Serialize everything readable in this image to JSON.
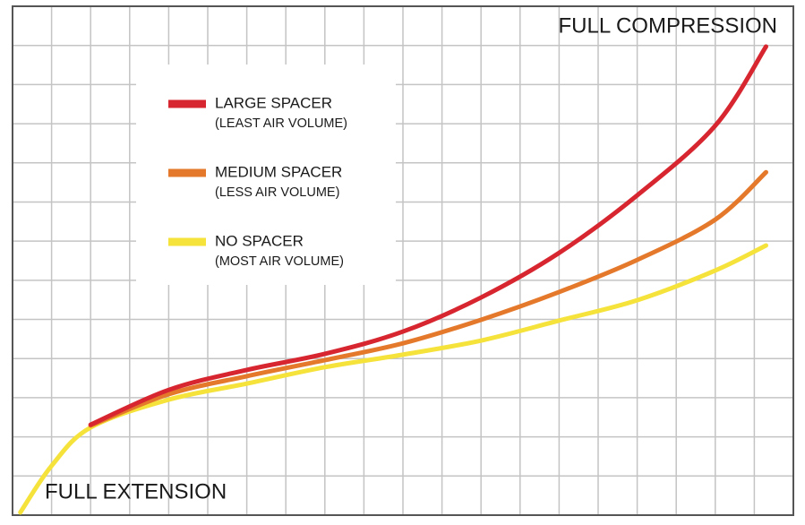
{
  "chart_data": {
    "type": "line",
    "annotations": [
      "FULL COMPRESSION",
      "FULL EXTENSION"
    ],
    "x": [
      0.2,
      1,
      2,
      4,
      6,
      8,
      10,
      12,
      14,
      16,
      18,
      19.3
    ],
    "xlim": [
      0,
      20
    ],
    "ylim": [
      0,
      13
    ],
    "xticks": [
      0,
      1,
      2,
      3,
      4,
      5,
      6,
      7,
      8,
      9,
      10,
      11,
      12,
      13,
      14,
      15,
      16,
      17,
      18,
      19,
      20
    ],
    "yticks": [
      0,
      1,
      2,
      3,
      4,
      5,
      6,
      7,
      8,
      9,
      10,
      11,
      12,
      13
    ],
    "grid": true,
    "series": [
      {
        "name": "LARGE SPACER",
        "description": "(LEAST AIR VOLUME)",
        "color": "#d7262f",
        "values": [
          null,
          null,
          2.31,
          3.2,
          3.71,
          4.12,
          4.69,
          5.56,
          6.7,
          8.17,
          9.95,
          11.97
        ]
      },
      {
        "name": "MEDIUM SPACER",
        "description": "(LESS AIR VOLUME)",
        "color": "#e5792b",
        "values": [
          null,
          null,
          2.29,
          3.09,
          3.55,
          3.96,
          4.39,
          4.99,
          5.7,
          6.52,
          7.55,
          8.76
        ]
      },
      {
        "name": "NO SPACER",
        "description": "(MOST AIR VOLUME)",
        "color": "#f5e23a",
        "values": [
          0.07,
          1.26,
          2.24,
          2.95,
          3.36,
          3.78,
          4.1,
          4.46,
          4.97,
          5.49,
          6.25,
          6.89
        ]
      }
    ]
  }
}
